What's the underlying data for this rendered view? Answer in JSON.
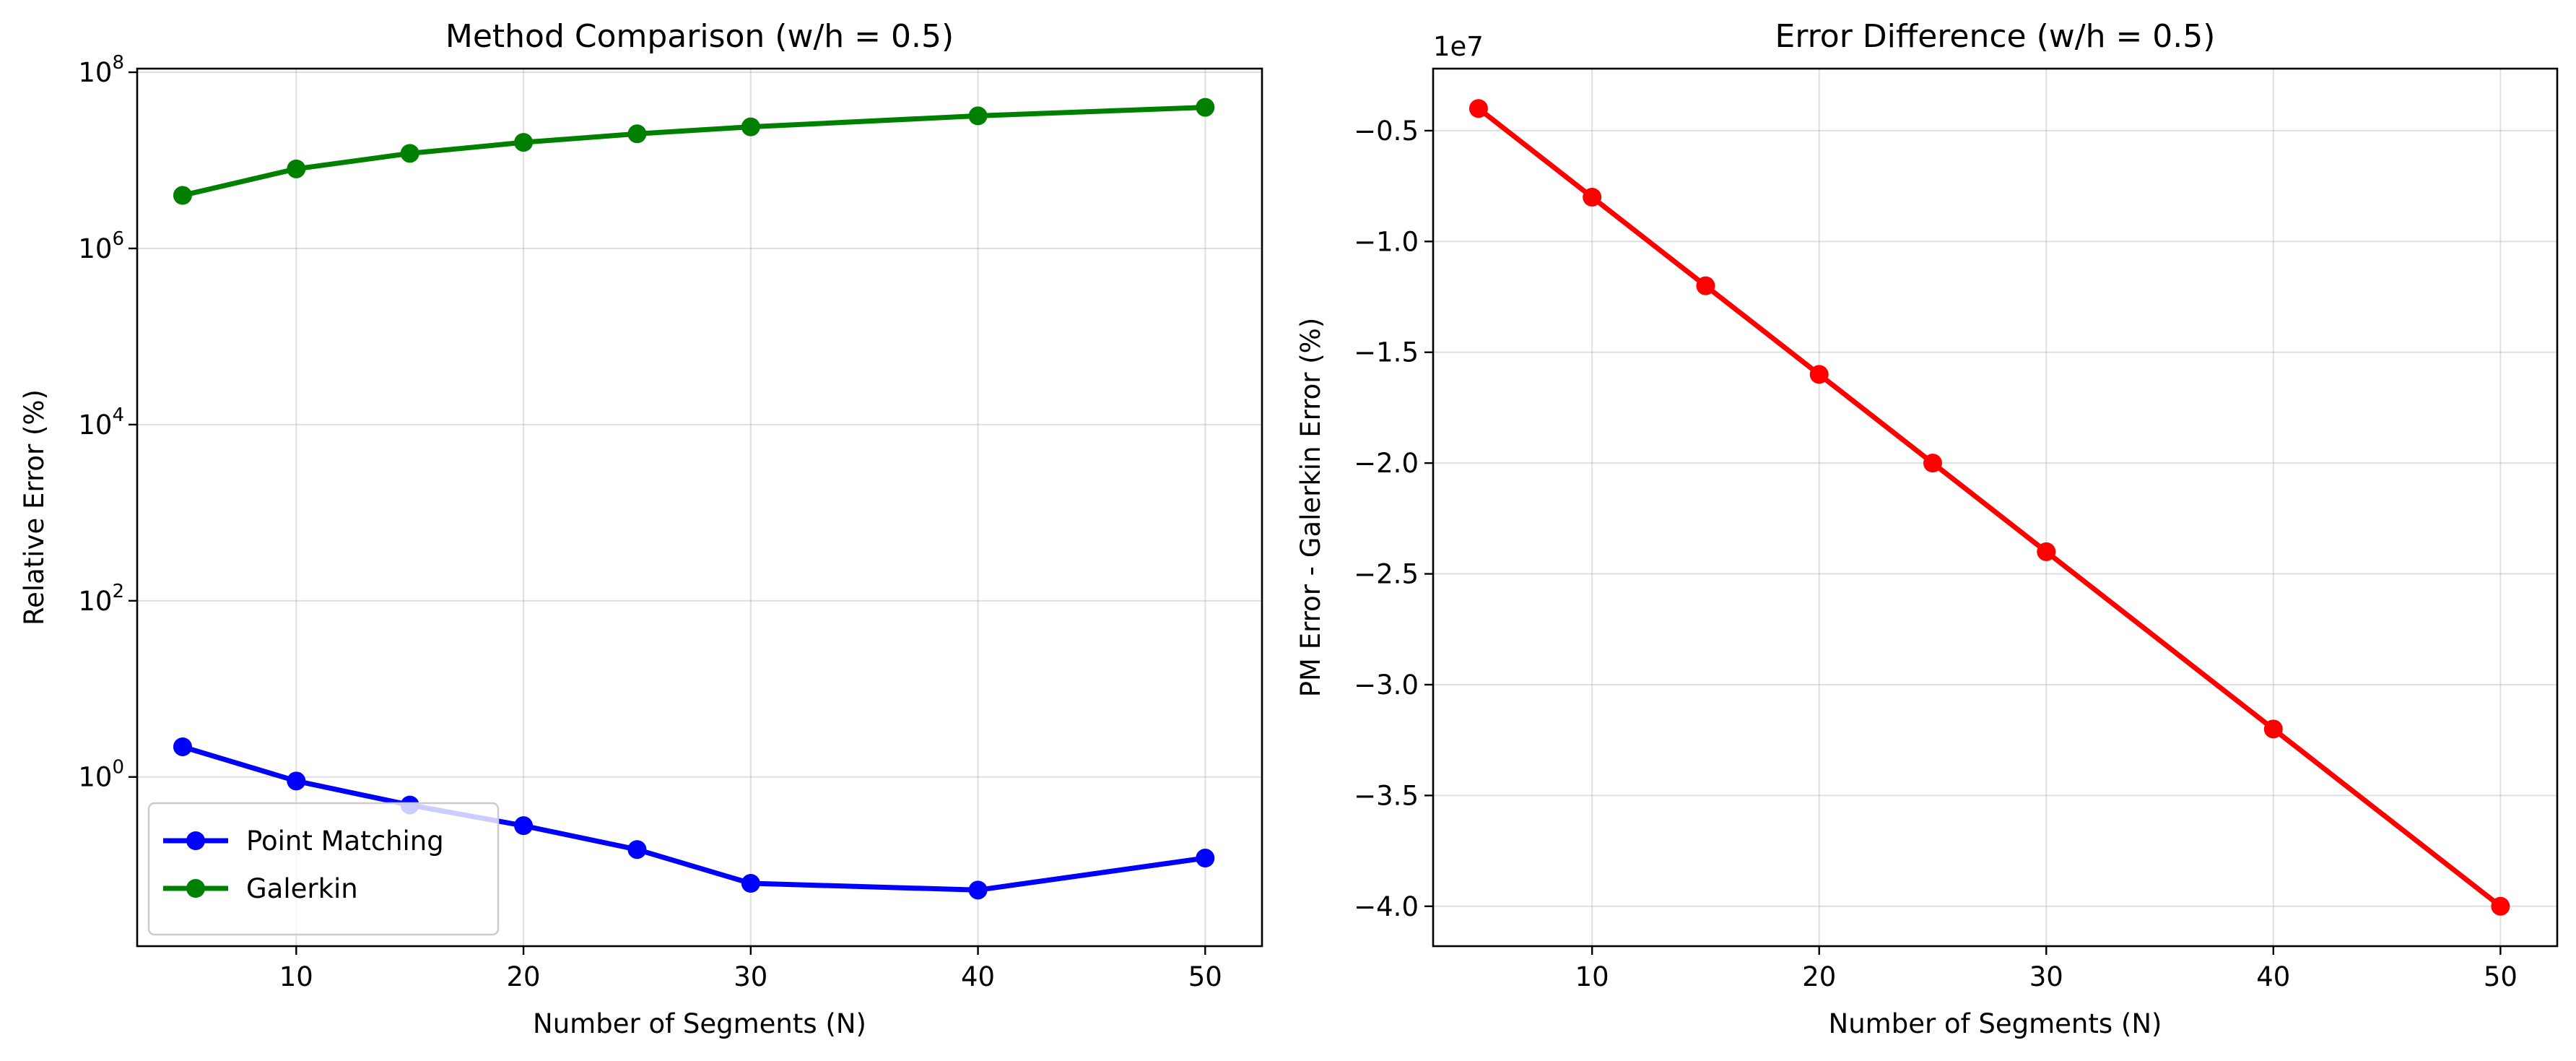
{
  "chart_data": [
    {
      "type": "line",
      "title": "Method Comparison (w/h = 0.5)",
      "xlabel": "Number of Segments (N)",
      "ylabel": "Relative Error (%)",
      "yscale": "log",
      "xlim": [
        3,
        52.5
      ],
      "ylim": [
        0.012,
        110000000
      ],
      "x_ticks": [
        10,
        20,
        30,
        40,
        50
      ],
      "y_ticks": [
        {
          "base": "10",
          "exp": "0",
          "value": 1
        },
        {
          "base": "10",
          "exp": "2",
          "value": 100
        },
        {
          "base": "10",
          "exp": "4",
          "value": 10000
        },
        {
          "base": "10",
          "exp": "6",
          "value": 1000000
        },
        {
          "base": "10",
          "exp": "8",
          "value": 100000000
        }
      ],
      "grid": true,
      "legend_position": "lower-left",
      "series": [
        {
          "name": "Point Matching",
          "color": "#0000ff",
          "x": [
            5,
            10,
            15,
            20,
            25,
            30,
            40,
            50
          ],
          "y": [
            2.2,
            0.9,
            0.48,
            0.28,
            0.15,
            0.062,
            0.052,
            0.12
          ]
        },
        {
          "name": "Galerkin",
          "color": "#008000",
          "x": [
            5,
            10,
            15,
            20,
            25,
            30,
            40,
            50
          ],
          "y": [
            4000000,
            8000000,
            12000000,
            16000000,
            20000000,
            24000000,
            32000000,
            40000000
          ]
        }
      ]
    },
    {
      "type": "line",
      "title": "Error Difference (w/h = 0.5)",
      "xlabel": "Number of Segments (N)",
      "ylabel": "PM Error - Galerkin Error (%)",
      "offset_text": "1e7",
      "xlim": [
        3,
        52.5
      ],
      "ylim": [
        -41800000,
        -2200000
      ],
      "x_ticks": [
        10,
        20,
        30,
        40,
        50
      ],
      "y_ticks": [
        {
          "label": "−0.5",
          "value": -5000000
        },
        {
          "label": "−1.0",
          "value": -10000000
        },
        {
          "label": "−1.5",
          "value": -15000000
        },
        {
          "label": "−2.0",
          "value": -20000000
        },
        {
          "label": "−2.5",
          "value": -25000000
        },
        {
          "label": "−3.0",
          "value": -30000000
        },
        {
          "label": "−3.5",
          "value": -35000000
        },
        {
          "label": "−4.0",
          "value": -40000000
        }
      ],
      "grid": true,
      "series": [
        {
          "color": "#ff0000",
          "x": [
            5,
            10,
            15,
            20,
            25,
            30,
            40,
            50
          ],
          "y": [
            -4000000,
            -8000000,
            -12000000,
            -16000000,
            -20000000,
            -24000000,
            -32000000,
            -40000000
          ]
        }
      ]
    }
  ]
}
